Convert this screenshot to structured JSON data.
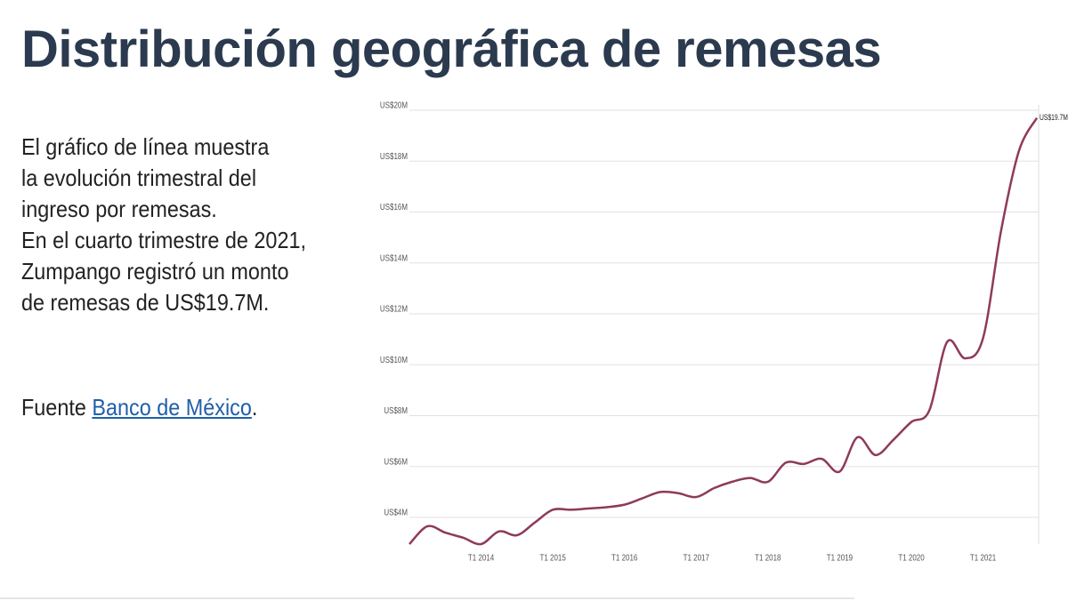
{
  "header": {
    "title": "Distribución geográfica de remesas"
  },
  "text": {
    "lines": [
      "El gráfico de línea muestra",
      "la evolución trimestral del",
      "ingreso por remesas.",
      "En el cuarto trimestre de 2021,",
      "Zumpango registró un monto",
      "de remesas de US$19.7M."
    ]
  },
  "source": {
    "label": "Fuente",
    "link": "Banco de México",
    "end": "."
  },
  "chart_data": {
    "type": "line",
    "categories": [
      null,
      null,
      null,
      null,
      "T1 2014",
      null,
      null,
      null,
      "T1 2015",
      null,
      null,
      null,
      "T1 2016",
      null,
      null,
      null,
      "T1 2017",
      null,
      null,
      null,
      "T1 2018",
      null,
      null,
      null,
      "T1 2019",
      null,
      null,
      null,
      "T1 2020",
      null,
      null,
      null,
      "T1 2021",
      null,
      null,
      null
    ],
    "series": [
      {
        "name": "Remesas",
        "color": "#8e3a5c",
        "values": [
          2.95,
          3.65,
          3.4,
          3.2,
          2.95,
          3.45,
          3.3,
          3.8,
          4.3,
          4.3,
          4.35,
          4.4,
          4.5,
          4.75,
          5.0,
          4.95,
          4.8,
          5.15,
          5.4,
          5.55,
          5.4,
          6.15,
          6.1,
          6.3,
          5.8,
          7.15,
          6.45,
          7.05,
          7.75,
          8.2,
          10.9,
          10.25,
          11.05,
          15.25,
          18.4,
          19.7
        ],
        "value_labels": [
          null,
          null,
          null,
          null,
          null,
          null,
          null,
          null,
          null,
          null,
          null,
          null,
          null,
          null,
          null,
          null,
          null,
          null,
          null,
          null,
          null,
          null,
          null,
          null,
          null,
          null,
          null,
          null,
          null,
          null,
          null,
          null,
          null,
          null,
          null,
          "US$19.7M"
        ]
      }
    ],
    "ylim": [
      2.95,
      20
    ],
    "yticks": [
      {
        "value": 4,
        "label": "US$4M"
      },
      {
        "value": 6,
        "label": "US$6M"
      },
      {
        "value": 8,
        "label": "US$8M"
      },
      {
        "value": 10,
        "label": "US$10M"
      },
      {
        "value": 12,
        "label": "US$12M"
      },
      {
        "value": 14,
        "label": "US$14M"
      },
      {
        "value": 16,
        "label": "US$16M"
      },
      {
        "value": 18,
        "label": "US$18M"
      },
      {
        "value": 20,
        "label": "US$20M"
      }
    ],
    "grid": true
  }
}
